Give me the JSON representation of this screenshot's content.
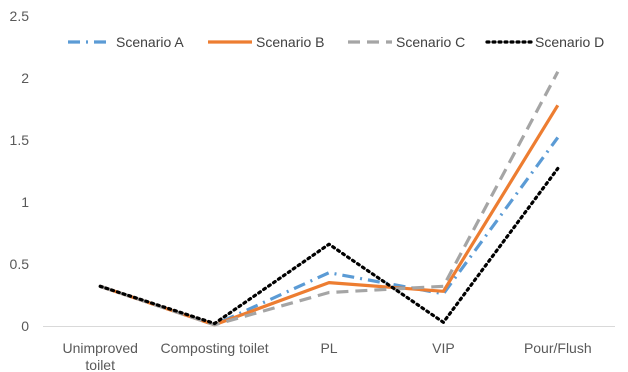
{
  "chart_data": {
    "type": "line",
    "title": "",
    "xlabel": "",
    "ylabel": "",
    "categories": [
      "Unimproved toilet",
      "Composting toilet",
      "PL",
      "VIP",
      "Pour/Flush"
    ],
    "category_lines": [
      [
        "Unimproved",
        "toilet"
      ],
      [
        "Composting toilet"
      ],
      [
        "PL"
      ],
      [
        "VIP"
      ],
      [
        "Pour/Flush"
      ]
    ],
    "ylim": [
      0,
      2.5
    ],
    "yticks": [
      0,
      0.5,
      1,
      1.5,
      2,
      2.5
    ],
    "ytick_labels": [
      "0",
      "0.5",
      "1",
      "1.5",
      "2",
      "2.5"
    ],
    "grid": false,
    "legend_position": "top",
    "series": [
      {
        "name": "Scenario A",
        "values": [
          0.32,
          0.01,
          0.43,
          0.26,
          1.52
        ],
        "color": "#5B9BD5",
        "dash": "dash-dot"
      },
      {
        "name": "Scenario B",
        "values": [
          0.32,
          0.01,
          0.35,
          0.28,
          1.78
        ],
        "color": "#ED7D31",
        "dash": "solid"
      },
      {
        "name": "Scenario C",
        "values": [
          0.32,
          0.01,
          0.27,
          0.32,
          2.05
        ],
        "color": "#A5A5A5",
        "dash": "dash"
      },
      {
        "name": "Scenario D",
        "values": [
          0.32,
          0.02,
          0.66,
          0.03,
          1.27
        ],
        "color": "#000000",
        "dash": "dot"
      }
    ]
  }
}
